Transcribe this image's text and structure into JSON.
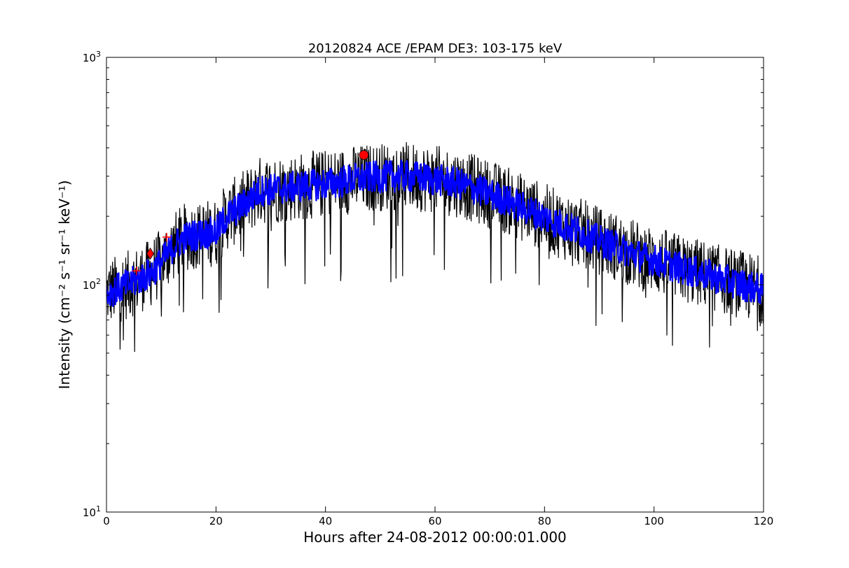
{
  "chart_data": {
    "type": "line",
    "title": "20120824 ACE /EPAM DE3: 103-175 keV",
    "xlabel": "Hours after 24-08-2012 00:00:01.000",
    "ylabel": "Intensity (cm⁻² s⁻¹ sr⁻¹ keV⁻¹)",
    "yscale": "log",
    "xlim": [
      0,
      120
    ],
    "ylim": [
      10,
      1000
    ],
    "grid": false,
    "x_ticks": [
      0,
      20,
      40,
      60,
      80,
      100,
      120
    ],
    "x_tick_labels": [
      "0",
      "20",
      "40",
      "60",
      "80",
      "100",
      "120"
    ],
    "y_tick_labels": [
      {
        "value": 10,
        "base": "10",
        "exp": "1"
      },
      {
        "value": 100,
        "base": "10",
        "exp": "2"
      },
      {
        "value": 1000,
        "base": "10",
        "exp": "3"
      }
    ],
    "series": [
      {
        "role": "raw-intensity",
        "color": "#000000",
        "x": [
          0,
          2,
          4,
          6,
          8,
          10,
          12,
          14,
          16,
          18,
          20,
          22,
          24,
          26,
          28,
          30,
          32,
          34,
          36,
          38,
          40,
          42,
          44,
          46,
          48,
          50,
          52,
          54,
          56,
          58,
          60,
          62,
          64,
          66,
          68,
          70,
          72,
          74,
          76,
          78,
          80,
          82,
          84,
          86,
          88,
          90,
          92,
          94,
          96,
          98,
          100,
          102,
          104,
          106,
          108,
          110,
          112,
          114,
          116,
          118,
          120
        ],
        "y": [
          92,
          96,
          100,
          106,
          112,
          125,
          145,
          160,
          165,
          168,
          170,
          200,
          215,
          235,
          260,
          262,
          265,
          268,
          272,
          275,
          278,
          282,
          288,
          292,
          296,
          298,
          300,
          300,
          298,
          295,
          290,
          285,
          280,
          270,
          260,
          250,
          240,
          230,
          218,
          208,
          198,
          188,
          180,
          172,
          164,
          156,
          150,
          144,
          138,
          132,
          128,
          124,
          120,
          116,
          113,
          110,
          106,
          103,
          100,
          97,
          95
        ],
        "scatter_fraction": 0.25
      },
      {
        "role": "averaged-intensity",
        "color": "#0000ff",
        "x": [
          0,
          2,
          4,
          6,
          8,
          10,
          12,
          14,
          16,
          18,
          20,
          22,
          24,
          26,
          28,
          30,
          32,
          34,
          36,
          38,
          40,
          42,
          44,
          46,
          48,
          50,
          52,
          54,
          56,
          58,
          60,
          62,
          64,
          66,
          68,
          70,
          72,
          74,
          76,
          78,
          80,
          82,
          84,
          86,
          88,
          90,
          92,
          94,
          96,
          98,
          100,
          102,
          104,
          106,
          108,
          110,
          112,
          114,
          116,
          118,
          120
        ],
        "y": [
          92,
          96,
          100,
          106,
          112,
          125,
          145,
          160,
          165,
          168,
          170,
          200,
          215,
          235,
          260,
          262,
          265,
          268,
          272,
          275,
          278,
          282,
          288,
          292,
          296,
          298,
          300,
          300,
          298,
          295,
          290,
          285,
          280,
          270,
          260,
          250,
          240,
          230,
          218,
          208,
          198,
          188,
          180,
          172,
          164,
          156,
          150,
          144,
          138,
          132,
          128,
          124,
          120,
          116,
          113,
          110,
          106,
          103,
          100,
          97,
          95
        ],
        "scatter_fraction": 0.12
      }
    ],
    "markers": [
      {
        "shape": "plus",
        "x": 5.5,
        "y": 115,
        "color": "#ff0000"
      },
      {
        "shape": "diamond",
        "x": 8,
        "y": 137,
        "color": "#ff0000"
      },
      {
        "shape": "plus",
        "x": 11,
        "y": 162,
        "color": "#ff0000"
      },
      {
        "shape": "circle",
        "x": 47,
        "y": 372,
        "color": "#ff0000"
      }
    ]
  }
}
